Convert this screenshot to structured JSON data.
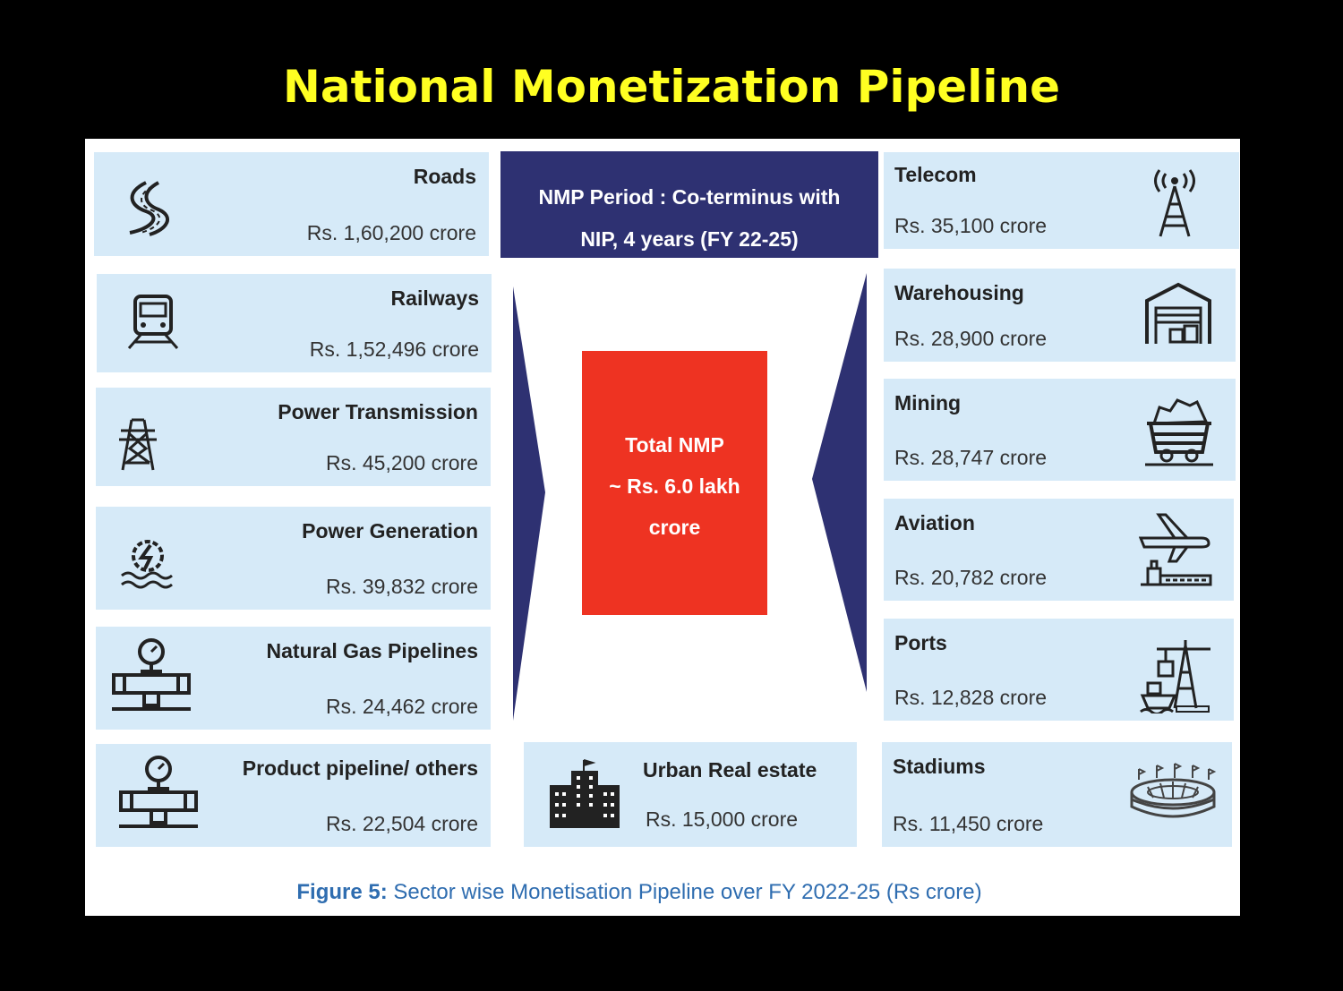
{
  "title": "National Monetization Pipeline",
  "period": {
    "line1": "NMP Period : Co-terminus with",
    "line2": "NIP,  4 years (FY 22-25)"
  },
  "total": {
    "line1": "Total NMP",
    "line2": "~ Rs. 6.0 lakh",
    "line3": "crore"
  },
  "left_sectors": [
    {
      "name": "Roads",
      "value": "Rs. 1,60,200 crore",
      "icon": "road-icon"
    },
    {
      "name": "Railways",
      "value": "Rs. 1,52,496 crore",
      "icon": "train-icon"
    },
    {
      "name": "Power Transmission",
      "value": "Rs. 45,200 crore",
      "icon": "transmission-tower-icon"
    },
    {
      "name": "Power Generation",
      "value": "Rs. 39,832 crore",
      "icon": "hydro-power-icon"
    },
    {
      "name": "Natural Gas Pipelines",
      "value": "Rs. 24,462 crore",
      "icon": "gas-pipeline-icon"
    },
    {
      "name": "Product pipeline/ others",
      "value": "Rs. 22,504 crore",
      "icon": "pipeline-icon"
    }
  ],
  "right_sectors": [
    {
      "name": "Telecom",
      "value": "Rs. 35,100 crore",
      "icon": "telecom-tower-icon"
    },
    {
      "name": "Warehousing",
      "value": "Rs. 28,900 crore",
      "icon": "warehouse-icon"
    },
    {
      "name": "Mining",
      "value": "Rs. 28,747 crore",
      "icon": "mining-cart-icon"
    },
    {
      "name": "Aviation",
      "value": "Rs. 20,782 crore",
      "icon": "airplane-icon"
    },
    {
      "name": "Ports",
      "value": "Rs. 12,828 crore",
      "icon": "port-crane-icon"
    },
    {
      "name": "Stadiums",
      "value": "Rs. 11,450 crore",
      "icon": "stadium-icon"
    }
  ],
  "urban": {
    "name": "Urban Real estate",
    "value": "Rs. 15,000 crore",
    "icon": "building-icon"
  },
  "caption": {
    "label": "Figure 5:",
    "text": " Sector wise Monetisation Pipeline over FY 2022-25 (Rs crore)"
  },
  "colors": {
    "card": "#d6eaf8",
    "navy": "#2e3172",
    "red": "#ee3322",
    "title": "#ffff22",
    "caption": "#2f6db0"
  }
}
